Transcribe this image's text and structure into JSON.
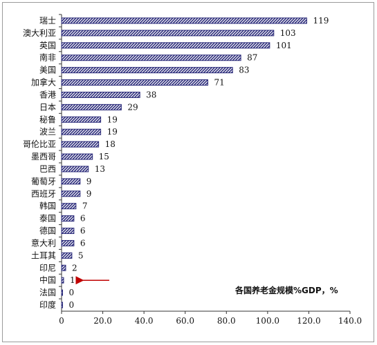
{
  "chart_data": {
    "type": "bar",
    "orientation": "horizontal",
    "categories": [
      "瑞士",
      "澳大利亚",
      "英国",
      "南非",
      "美国",
      "加拿大",
      "香港",
      "日本",
      "秘鲁",
      "波兰",
      "哥伦比亚",
      "墨西哥",
      "巴西",
      "葡萄牙",
      "西班牙",
      "韩国",
      "泰国",
      "德国",
      "意大利",
      "土耳其",
      "印尼",
      "中国",
      "法国",
      "印度"
    ],
    "values": [
      119,
      103,
      101,
      87,
      83,
      71,
      38,
      29,
      19,
      19,
      18,
      15,
      13,
      9,
      9,
      7,
      6,
      6,
      6,
      5,
      2,
      1,
      0,
      0
    ],
    "xlim": [
      0,
      140
    ],
    "xticks": [
      "0",
      "20.0",
      "40.0",
      "60.0",
      "80.0",
      "100.0",
      "120.0",
      "140.0"
    ],
    "annotation": "各国养老金规模%GDP，%",
    "highlight_category": "中国",
    "bar_fill": "hatched",
    "bar_color": "#2b2b7a",
    "arrow_color": "#c00000",
    "grid": false
  }
}
